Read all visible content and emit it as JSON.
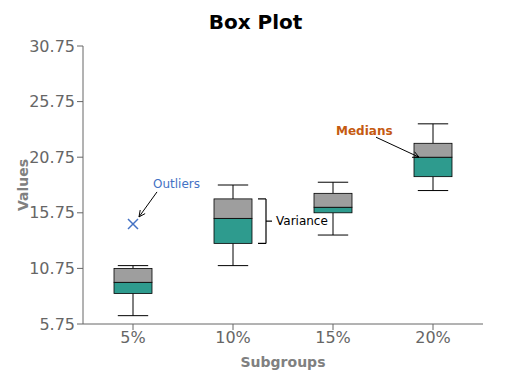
{
  "chart_data": {
    "type": "box",
    "title": "Box Plot",
    "x_label": "Subgroups",
    "y_label": "Values",
    "categories": [
      "5%",
      "10%",
      "15%",
      "20%"
    ],
    "q1": [
      8.5,
      13.0,
      15.75,
      19.0
    ],
    "median": [
      9.5,
      15.25,
      16.25,
      20.75
    ],
    "q3": [
      10.75,
      17.0,
      17.5,
      22.0
    ],
    "whisker_low": [
      6.5,
      11.0,
      13.75,
      17.75
    ],
    "whisker_high": [
      11.0,
      18.25,
      18.5,
      23.75
    ],
    "outliers": [
      14.75,
      null,
      null,
      null
    ],
    "colors": [
      "#2E9B8E",
      "#9E9E9E"
    ],
    "marker": "x",
    "ylim": [
      5.75,
      30.75
    ],
    "yticks": [
      5.75,
      10.75,
      15.75,
      20.75,
      25.75,
      30.75
    ],
    "grid": false,
    "annotations": [
      {
        "text": "Outliers",
        "color": "#4472C4"
      },
      {
        "text": "Variance",
        "color": "#000000"
      },
      {
        "text": "Medians",
        "color": "#C55A11"
      }
    ]
  }
}
